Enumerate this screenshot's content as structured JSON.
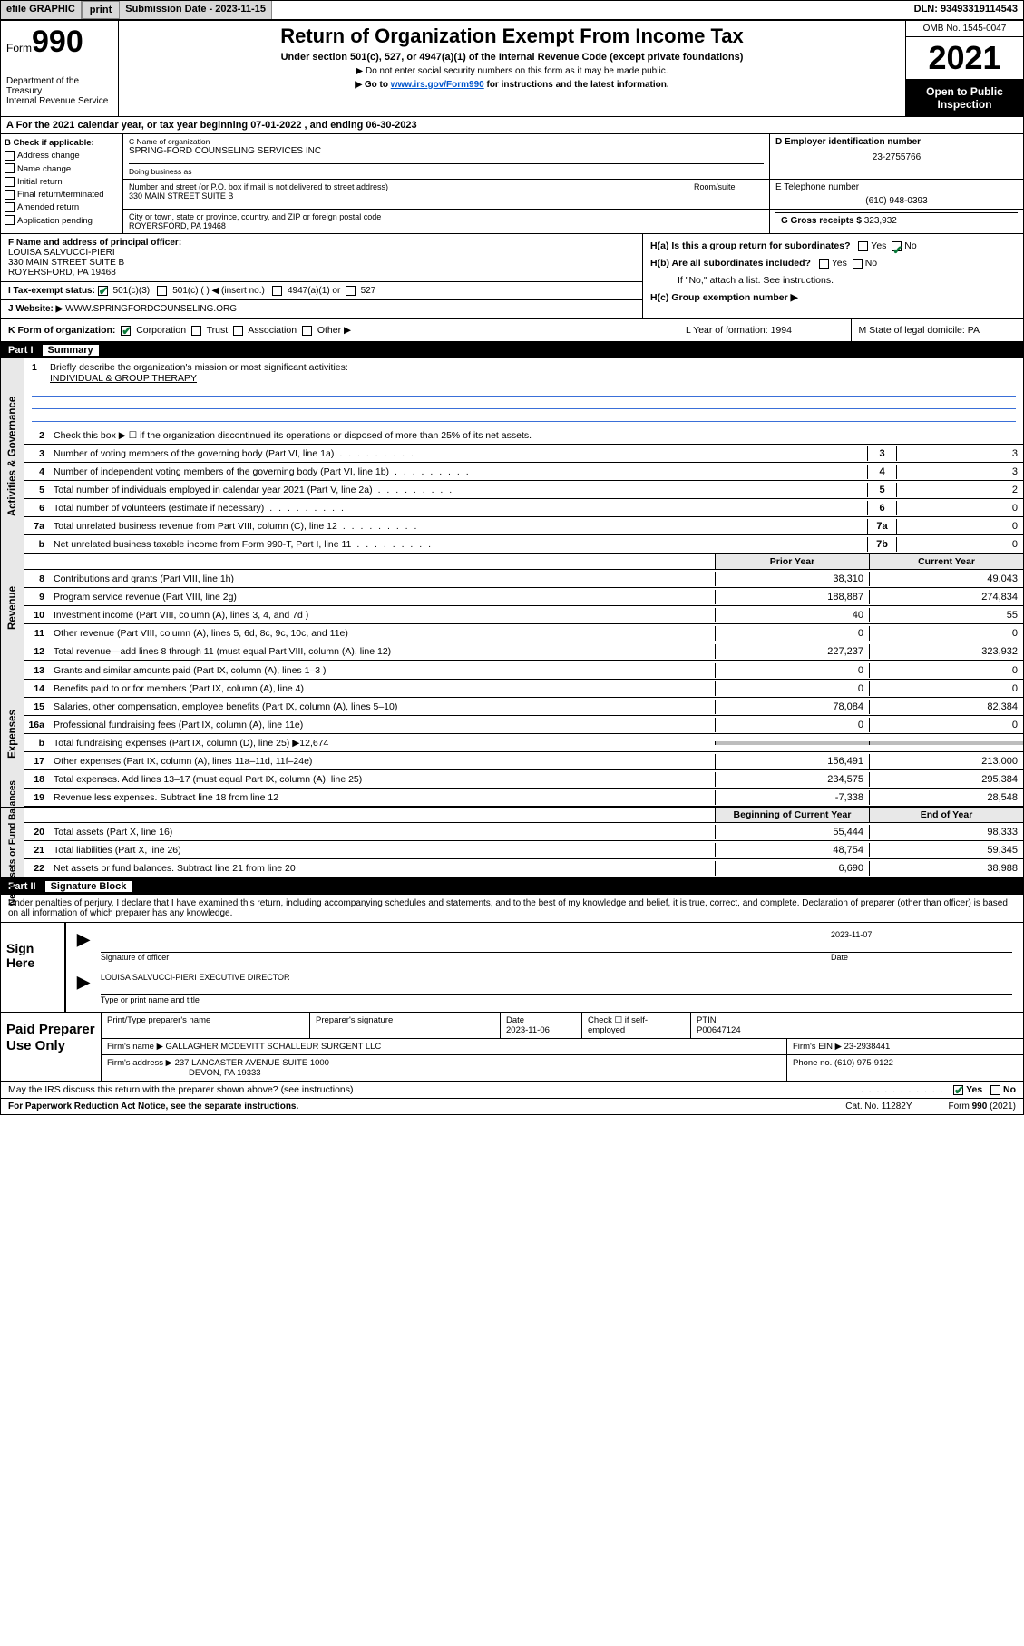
{
  "topbar": {
    "efile_label": "efile GRAPHIC",
    "print_btn": "print",
    "sub_date_label": "Submission Date - ",
    "sub_date": "2023-11-15",
    "dln_label": "DLN: ",
    "dln": "93493319114543"
  },
  "header": {
    "form_prefix": "Form",
    "form_num": "990",
    "dept": "Department of the Treasury",
    "irs": "Internal Revenue Service",
    "title": "Return of Organization Exempt From Income Tax",
    "sub": "Under section 501(c), 527, or 4947(a)(1) of the Internal Revenue Code (except private foundations)",
    "note1": "▶ Do not enter social security numbers on this form as it may be made public.",
    "note2_pre": "▶ Go to ",
    "note2_link": "www.irs.gov/Form990",
    "note2_post": " for instructions and the latest information.",
    "omb": "OMB No. 1545-0047",
    "year": "2021",
    "inspect": "Open to Public Inspection"
  },
  "line_a": "A For the 2021 calendar year, or tax year beginning 07-01-2022  , and ending 06-30-2023",
  "col_b": {
    "label": "B Check if applicable:",
    "items": [
      "Address change",
      "Name change",
      "Initial return",
      "Final return/terminated",
      "Amended return",
      "Application pending"
    ]
  },
  "org": {
    "name_label": "C Name of organization",
    "name": "SPRING-FORD COUNSELING SERVICES INC",
    "dba_label": "Doing business as",
    "dba": "",
    "street_label": "Number and street (or P.O. box if mail is not delivered to street address)",
    "street": "330 MAIN STREET SUITE B",
    "suite_label": "Room/suite",
    "city_label": "City or town, state or province, country, and ZIP or foreign postal code",
    "city": "ROYERSFORD, PA  19468"
  },
  "col_d": {
    "label": "D Employer identification number",
    "val": "23-2755766"
  },
  "col_e": {
    "label": "E Telephone number",
    "val": "(610) 948-0393"
  },
  "col_g": {
    "label": "G Gross receipts $ ",
    "val": "323,932"
  },
  "line_f": {
    "label": "F Name and address of principal officer:",
    "name": "LOUISA SALVUCCI-PIERI",
    "addr1": "330 MAIN STREET SUITE B",
    "addr2": "ROYERSFORD, PA  19468"
  },
  "col_h": {
    "ha": "H(a)  Is this a group return for subordinates?",
    "ha_yes": "Yes",
    "ha_no": "No",
    "hb": "H(b)  Are all subordinates included?",
    "hb_yes": "Yes",
    "hb_no": "No",
    "hb_note": "If \"No,\" attach a list. See instructions.",
    "hc": "H(c)  Group exemption number ▶"
  },
  "line_i": {
    "label": "I   Tax-exempt status:",
    "o1": "501(c)(3)",
    "o2": "501(c) (  ) ◀ (insert no.)",
    "o3": "4947(a)(1) or",
    "o4": "527"
  },
  "line_j": {
    "label": "J   Website: ▶ ",
    "val": "WWW.SPRINGFORDCOUNSELING.ORG"
  },
  "line_k": {
    "label": "K Form of organization:",
    "o1": "Corporation",
    "o2": "Trust",
    "o3": "Association",
    "o4": "Other ▶"
  },
  "line_l": "L Year of formation: 1994",
  "line_m": "M State of legal domicile: PA",
  "part1": {
    "num": "Part I",
    "title": "Summary"
  },
  "mission": {
    "num": "1",
    "label": "Briefly describe the organization's mission or most significant activities:",
    "text": "INDIVIDUAL & GROUP THERAPY"
  },
  "gov_rows": [
    {
      "n": "2",
      "d": "Check this box ▶ ☐  if the organization discontinued its operations or disposed of more than 25% of its net assets."
    },
    {
      "n": "3",
      "d": "Number of voting members of the governing body (Part VI, line 1a)",
      "box": "3",
      "v": "3"
    },
    {
      "n": "4",
      "d": "Number of independent voting members of the governing body (Part VI, line 1b)",
      "box": "4",
      "v": "3"
    },
    {
      "n": "5",
      "d": "Total number of individuals employed in calendar year 2021 (Part V, line 2a)",
      "box": "5",
      "v": "2"
    },
    {
      "n": "6",
      "d": "Total number of volunteers (estimate if necessary)",
      "box": "6",
      "v": "0"
    },
    {
      "n": "7a",
      "d": "Total unrelated business revenue from Part VIII, column (C), line 12",
      "box": "7a",
      "v": "0"
    },
    {
      "n": "b",
      "d": "Net unrelated business taxable income from Form 990-T, Part I, line 11",
      "box": "7b",
      "v": "0"
    }
  ],
  "two_hdr": {
    "c1": "Prior Year",
    "c2": "Current Year"
  },
  "rev_rows": [
    {
      "n": "8",
      "d": "Contributions and grants (Part VIII, line 1h)",
      "v1": "38,310",
      "v2": "49,043"
    },
    {
      "n": "9",
      "d": "Program service revenue (Part VIII, line 2g)",
      "v1": "188,887",
      "v2": "274,834"
    },
    {
      "n": "10",
      "d": "Investment income (Part VIII, column (A), lines 3, 4, and 7d )",
      "v1": "40",
      "v2": "55"
    },
    {
      "n": "11",
      "d": "Other revenue (Part VIII, column (A), lines 5, 6d, 8c, 9c, 10c, and 11e)",
      "v1": "0",
      "v2": "0"
    },
    {
      "n": "12",
      "d": "Total revenue—add lines 8 through 11 (must equal Part VIII, column (A), line 12)",
      "v1": "227,237",
      "v2": "323,932"
    }
  ],
  "exp_rows": [
    {
      "n": "13",
      "d": "Grants and similar amounts paid (Part IX, column (A), lines 1–3 )",
      "v1": "0",
      "v2": "0"
    },
    {
      "n": "14",
      "d": "Benefits paid to or for members (Part IX, column (A), line 4)",
      "v1": "0",
      "v2": "0"
    },
    {
      "n": "15",
      "d": "Salaries, other compensation, employee benefits (Part IX, column (A), lines 5–10)",
      "v1": "78,084",
      "v2": "82,384"
    },
    {
      "n": "16a",
      "d": "Professional fundraising fees (Part IX, column (A), line 11e)",
      "v1": "0",
      "v2": "0"
    },
    {
      "n": "b",
      "d": "Total fundraising expenses (Part IX, column (D), line 25) ▶12,674",
      "shade": true
    },
    {
      "n": "17",
      "d": "Other expenses (Part IX, column (A), lines 11a–11d, 11f–24e)",
      "v1": "156,491",
      "v2": "213,000"
    },
    {
      "n": "18",
      "d": "Total expenses. Add lines 13–17 (must equal Part IX, column (A), line 25)",
      "v1": "234,575",
      "v2": "295,384"
    },
    {
      "n": "19",
      "d": "Revenue less expenses. Subtract line 18 from line 12",
      "v1": "-7,338",
      "v2": "28,548"
    }
  ],
  "na_hdr": {
    "c1": "Beginning of Current Year",
    "c2": "End of Year"
  },
  "na_rows": [
    {
      "n": "20",
      "d": "Total assets (Part X, line 16)",
      "v1": "55,444",
      "v2": "98,333"
    },
    {
      "n": "21",
      "d": "Total liabilities (Part X, line 26)",
      "v1": "48,754",
      "v2": "59,345"
    },
    {
      "n": "22",
      "d": "Net assets or fund balances. Subtract line 21 from line 20",
      "v1": "6,690",
      "v2": "38,988"
    }
  ],
  "side_labels": {
    "gov": "Activities & Governance",
    "rev": "Revenue",
    "exp": "Expenses",
    "na": "Net Assets or\nFund Balances"
  },
  "part2": {
    "num": "Part II",
    "title": "Signature Block"
  },
  "sig_intro": "Under penalties of perjury, I declare that I have examined this return, including accompanying schedules and statements, and to the best of my knowledge and belief, it is true, correct, and complete. Declaration of preparer (other than officer) is based on all information of which preparer has any knowledge.",
  "sign": {
    "label": "Sign Here",
    "sig_of_officer": "Signature of officer",
    "date_lbl": "Date",
    "date": "2023-11-07",
    "name_line": "LOUISA SALVUCCI-PIERI  EXECUTIVE DIRECTOR",
    "type_lbl": "Type or print name and title"
  },
  "paid": {
    "label": "Paid Preparer Use Only",
    "h_name": "Print/Type preparer's name",
    "h_sig": "Preparer's signature",
    "h_date": "Date",
    "date": "2023-11-06",
    "h_check": "Check ☐ if self-employed",
    "h_ptin": "PTIN",
    "ptin": "P00647124",
    "firm_name_lbl": "Firm's name    ▶ ",
    "firm_name": "GALLAGHER MCDEVITT SCHALLEUR SURGENT LLC",
    "firm_ein_lbl": "Firm's EIN ▶ ",
    "firm_ein": "23-2938441",
    "firm_addr_lbl": "Firm's address ▶ ",
    "firm_addr1": "237 LANCASTER AVENUE SUITE 1000",
    "firm_addr2": "DEVON, PA  19333",
    "phone_lbl": "Phone no. ",
    "phone": "(610) 975-9122"
  },
  "discuss": {
    "q": "May the IRS discuss this return with the preparer shown above? (see instructions)",
    "yes": "Yes",
    "no": "No"
  },
  "footer": {
    "pra": "For Paperwork Reduction Act Notice, see the separate instructions.",
    "cat": "Cat. No. 11282Y",
    "form": "Form 990 (2021)"
  }
}
